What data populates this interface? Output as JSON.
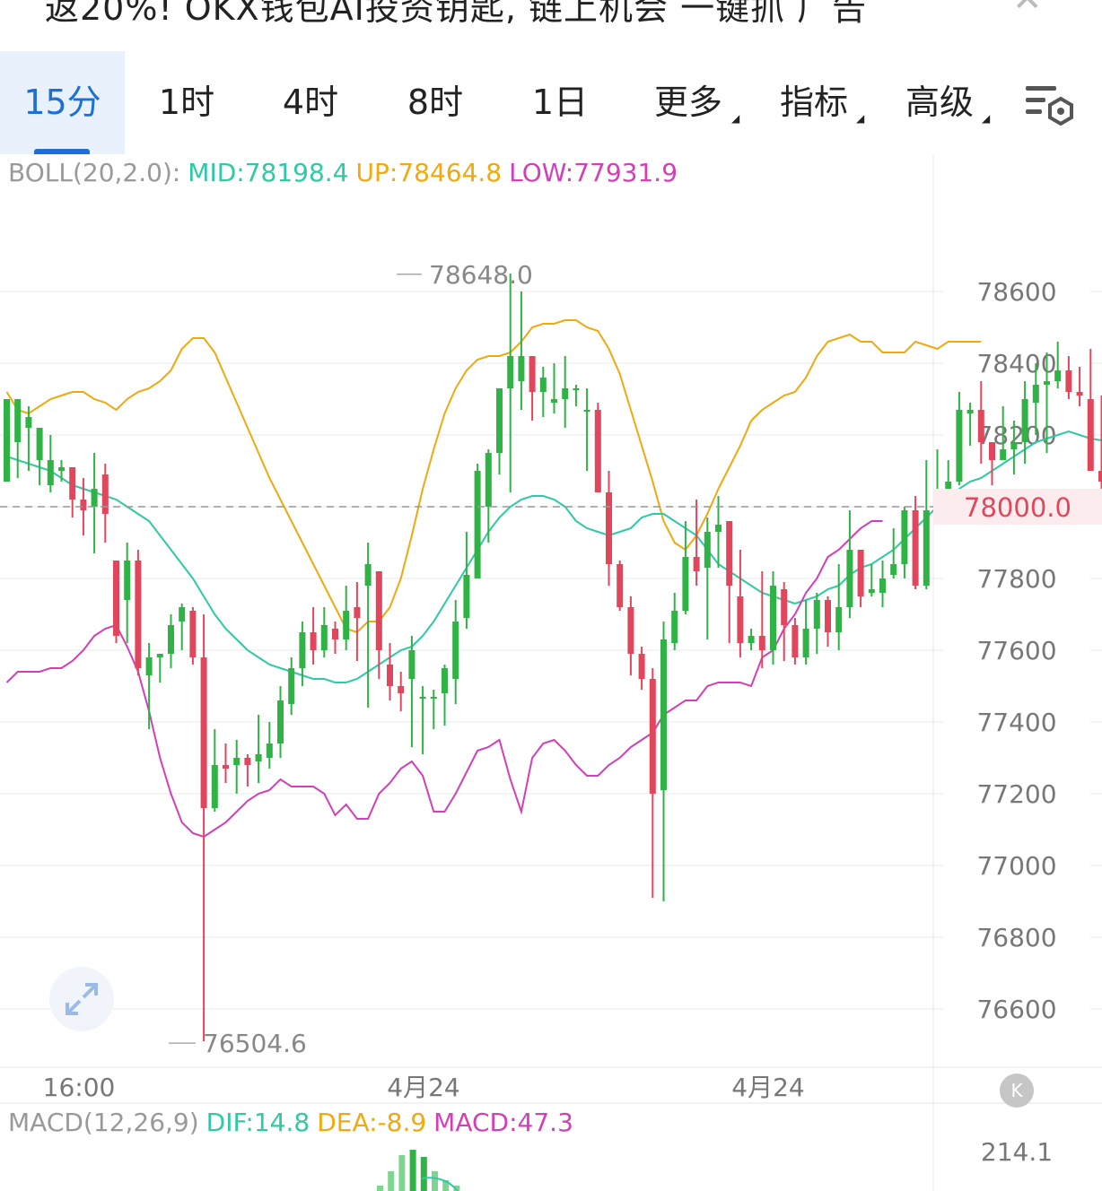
{
  "banner": {
    "text": "返20%! OKX钱包AI投资钥匙, 链上机会 一键抓 广告",
    "close_icon": "close-icon"
  },
  "tabs": [
    {
      "label": "15分",
      "active": true
    },
    {
      "label": "1时",
      "active": false
    },
    {
      "label": "4时",
      "active": false
    },
    {
      "label": "8时",
      "active": false
    },
    {
      "label": "1日",
      "active": false
    },
    {
      "label": "更多",
      "active": false,
      "dropdown": true
    },
    {
      "label": "指标",
      "active": false,
      "dropdown": true
    },
    {
      "label": "高级",
      "active": false,
      "dropdown": true
    }
  ],
  "settings_icon": "chart-settings-icon",
  "boll": {
    "name": "BOLL(20,2.0):",
    "mid": "MID:78198.4",
    "up": "UP:78464.8",
    "low": "LOW:77931.9"
  },
  "macd": {
    "name": "MACD(12,26,9)",
    "dif": "DIF:14.8",
    "dea": "DEA:-8.9",
    "value": "MACD:47.3",
    "axis_label": "214.1"
  },
  "colors": {
    "up": "#2fb344",
    "down": "#e0475c",
    "mid": "#2fc9a6",
    "upper": "#f0a90e",
    "lower": "#d23fb8",
    "accent": "#1d6fd8"
  },
  "chart_data": {
    "type": "candlestick",
    "title": "",
    "indicator": "BOLL(20,2.0)",
    "y_ticks": [
      78600,
      78400,
      78200,
      78000,
      77800,
      77600,
      77400,
      77200,
      77000,
      76800,
      76600
    ],
    "ylim": [
      76504.6,
      78648.0
    ],
    "current_price": 78000.0,
    "current_price_label": "78000.0",
    "high_label": "78648.0",
    "low_label": "76504.6",
    "x_tick_labels": [
      "16:00",
      "4月24",
      "4月24"
    ],
    "candles": [
      [
        78070,
        78300,
        78260,
        78180
      ],
      [
        78180,
        78300,
        78220,
        78080
      ],
      [
        78220,
        78250,
        78280,
        78100
      ],
      [
        78130,
        78220,
        78190,
        78060
      ],
      [
        78060,
        78130,
        78200,
        78040
      ],
      [
        78100,
        78110,
        78130,
        78070
      ],
      [
        78110,
        78020,
        78110,
        77970
      ],
      [
        78020,
        77990,
        78080,
        77920
      ],
      [
        78000,
        78050,
        78150,
        77870
      ],
      [
        78090,
        77980,
        78120,
        77900
      ],
      [
        77850,
        77640,
        77850,
        77620
      ],
      [
        77740,
        77850,
        77900,
        77620
      ],
      [
        77850,
        77550,
        77880,
        77530
      ],
      [
        77530,
        77580,
        77620,
        77380
      ],
      [
        77580,
        77590,
        77580,
        77510
      ],
      [
        77590,
        77670,
        77700,
        77550
      ],
      [
        77680,
        77720,
        77730,
        77600
      ],
      [
        77710,
        77580,
        77720,
        77560
      ],
      [
        77580,
        77160,
        77700,
        76510
      ],
      [
        77160,
        77280,
        77380,
        77150
      ],
      [
        77280,
        77270,
        77340,
        77230
      ],
      [
        77280,
        77300,
        77350,
        77200
      ],
      [
        77300,
        77280,
        77310,
        77220
      ],
      [
        77290,
        77310,
        77420,
        77230
      ],
      [
        77300,
        77340,
        77400,
        77270
      ],
      [
        77340,
        77460,
        77500,
        77300
      ],
      [
        77450,
        77550,
        77580,
        77420
      ],
      [
        77550,
        77650,
        77680,
        77500
      ],
      [
        77650,
        77600,
        77720,
        77560
      ],
      [
        77600,
        77670,
        77720,
        77580
      ],
      [
        77660,
        77630,
        77680,
        77590
      ],
      [
        77630,
        77710,
        77780,
        77600
      ],
      [
        77720,
        77690,
        77790,
        77570
      ],
      [
        77780,
        77840,
        77900,
        77440
      ],
      [
        77820,
        77600,
        77820,
        77520
      ],
      [
        77560,
        77500,
        77620,
        77460
      ],
      [
        77500,
        77480,
        77540,
        77430
      ],
      [
        77520,
        77600,
        77640,
        77330
      ],
      [
        77470,
        77470,
        77500,
        77310
      ],
      [
        77470,
        77470,
        77490,
        77380
      ],
      [
        77480,
        77550,
        77560,
        77390
      ],
      [
        77520,
        77680,
        77740,
        77450
      ],
      [
        77690,
        77810,
        77930,
        77660
      ],
      [
        77800,
        78100,
        78120,
        77800
      ],
      [
        78000,
        78150,
        78160,
        77900
      ],
      [
        78150,
        78330,
        78320,
        78090
      ],
      [
        78330,
        78420,
        78650,
        78040
      ],
      [
        78350,
        78420,
        78600,
        78270
      ],
      [
        78420,
        78320,
        78420,
        78240
      ],
      [
        78320,
        78360,
        78390,
        78250
      ],
      [
        78290,
        78300,
        78400,
        78260
      ],
      [
        78300,
        78330,
        78420,
        78220
      ],
      [
        78330,
        78330,
        78340,
        78280
      ],
      [
        78270,
        78270,
        78330,
        78100
      ],
      [
        78270,
        78040,
        78290,
        78040
      ],
      [
        78040,
        77840,
        78100,
        77780
      ],
      [
        77840,
        77720,
        77850,
        77710
      ],
      [
        77720,
        77590,
        77750,
        77530
      ],
      [
        77590,
        77520,
        77610,
        77490
      ],
      [
        77520,
        77200,
        77550,
        76910
      ],
      [
        77210,
        77630,
        77680,
        76900
      ],
      [
        77620,
        77710,
        77760,
        77600
      ],
      [
        77710,
        77860,
        77960,
        77700
      ],
      [
        77860,
        77820,
        78020,
        77780
      ],
      [
        77830,
        77930,
        77970,
        77630
      ],
      [
        77930,
        77950,
        78030,
        77830
      ],
      [
        77960,
        77780,
        77950,
        77620
      ],
      [
        77750,
        77620,
        77880,
        77580
      ],
      [
        77620,
        77640,
        77660,
        77600
      ],
      [
        77640,
        77600,
        77820,
        77550
      ],
      [
        77600,
        77780,
        77820,
        77560
      ],
      [
        77770,
        77670,
        77790,
        77570
      ],
      [
        77670,
        77580,
        77690,
        77560
      ],
      [
        77580,
        77660,
        77740,
        77560
      ],
      [
        77660,
        77740,
        77760,
        77590
      ],
      [
        77740,
        77650,
        77750,
        77610
      ],
      [
        77650,
        77720,
        77840,
        77600
      ],
      [
        77720,
        77880,
        77990,
        77690
      ],
      [
        77880,
        77750,
        77860,
        77720
      ],
      [
        77760,
        77770,
        77840,
        77750
      ],
      [
        77760,
        77800,
        77850,
        77720
      ],
      [
        77810,
        77840,
        77940,
        77800
      ],
      [
        77840,
        77990,
        78000,
        77800
      ],
      [
        77990,
        77780,
        78030,
        77770
      ],
      [
        77780,
        77990,
        78130,
        77770
      ],
      [
        77990,
        78040,
        78160,
        77970
      ],
      [
        78040,
        78070,
        78130,
        78000
      ],
      [
        78070,
        78270,
        78320,
        78060
      ],
      [
        78260,
        78270,
        78290,
        78170
      ],
      [
        78270,
        78180,
        78350,
        78120
      ],
      [
        78180,
        78130,
        78180,
        78060
      ],
      [
        78130,
        78160,
        78280,
        78140
      ],
      [
        78160,
        78180,
        78240,
        78090
      ],
      [
        78180,
        78300,
        78350,
        78120
      ],
      [
        78290,
        78340,
        78400,
        78200
      ],
      [
        78340,
        78350,
        78430,
        78150
      ],
      [
        78350,
        78380,
        78460,
        78330
      ],
      [
        78380,
        78320,
        78420,
        78300
      ],
      [
        78320,
        78310,
        78390,
        78280
      ],
      [
        78300,
        78100,
        78440,
        78100
      ],
      [
        78100,
        78070,
        78310,
        78020
      ],
      [
        78070,
        78020,
        78070,
        77980
      ],
      [
        78020,
        78040,
        78060,
        77880
      ],
      [
        78040,
        78390,
        78390,
        78020
      ],
      [
        78390,
        78100,
        78470,
        78050
      ],
      [
        78100,
        78330,
        78420,
        78100
      ],
      [
        78330,
        78250,
        78350,
        78090
      ],
      [
        78230,
        78340,
        78360,
        78170
      ],
      [
        78340,
        78070,
        78370,
        78110
      ],
      [
        78070,
        78060,
        78100,
        78000
      ],
      [
        78060,
        78020,
        78120,
        78020
      ],
      [
        78090,
        78000,
        78090,
        78000
      ]
    ],
    "boll_mid": [
      78140,
      78130,
      78120,
      78110,
      78100,
      78080,
      78060,
      78050,
      78040,
      78030,
      78020,
      78000,
      77980,
      77960,
      77920,
      77880,
      77840,
      77800,
      77750,
      77700,
      77660,
      77630,
      77600,
      77580,
      77560,
      77550,
      77540,
      77530,
      77520,
      77520,
      77510,
      77510,
      77520,
      77540,
      77560,
      77580,
      77600,
      77610,
      77640,
      77680,
      77730,
      77780,
      77830,
      77880,
      77930,
      77970,
      78000,
      78020,
      78030,
      78030,
      78020,
      78000,
      77960,
      77940,
      77930,
      77920,
      77930,
      77940,
      77970,
      77980,
      77980,
      77960,
      77940,
      77920,
      77880,
      77840,
      77820,
      77800,
      77780,
      77760,
      77750,
      77740,
      77730,
      77740,
      77750,
      77770,
      77780,
      77810,
      77830,
      77840,
      77860,
      77880,
      77910,
      77940,
      77970,
      78000,
      78020,
      78050,
      78070,
      78080,
      78100,
      78120,
      78140,
      78160,
      78180,
      78190,
      78200,
      78210,
      78200,
      78190,
      78185
    ],
    "boll_up": [
      78320,
      78270,
      78260,
      78280,
      78300,
      78310,
      78320,
      78320,
      78300,
      78290,
      78270,
      78300,
      78320,
      78330,
      78350,
      78380,
      78440,
      78470,
      78470,
      78430,
      78360,
      78290,
      78220,
      78150,
      78080,
      78020,
      77960,
      77900,
      77840,
      77780,
      77720,
      77660,
      77650,
      77680,
      77680,
      77720,
      77800,
      77920,
      78050,
      78160,
      78260,
      78330,
      78380,
      78410,
      78420,
      78420,
      78430,
      78460,
      78500,
      78510,
      78510,
      78520,
      78520,
      78500,
      78490,
      78440,
      78370,
      78270,
      78170,
      78070,
      77960,
      77900,
      77880,
      77920,
      77980,
      78050,
      78110,
      78170,
      78240,
      78270,
      78290,
      78310,
      78320,
      78360,
      78420,
      78460,
      78470,
      78480,
      78460,
      78460,
      78430,
      78430,
      78430,
      78460,
      78450,
      78440,
      78460,
      78460,
      78460,
      78460
    ],
    "boll_low": [
      77510,
      77540,
      77540,
      77540,
      77550,
      77550,
      77570,
      77600,
      77640,
      77660,
      77670,
      77610,
      77540,
      77430,
      77300,
      77200,
      77120,
      77090,
      77080,
      77100,
      77120,
      77150,
      77180,
      77200,
      77210,
      77240,
      77220,
      77220,
      77220,
      77200,
      77140,
      77170,
      77130,
      77130,
      77200,
      77230,
      77270,
      77290,
      77250,
      77150,
      77150,
      77200,
      77260,
      77320,
      77330,
      77350,
      77240,
      77150,
      77300,
      77340,
      77350,
      77320,
      77280,
      77250,
      77250,
      77280,
      77300,
      77330,
      77350,
      77370,
      77420,
      77440,
      77460,
      77460,
      77500,
      77510,
      77510,
      77510,
      77500,
      77580,
      77600,
      77660,
      77700,
      77760,
      77800,
      77860,
      77880,
      77910,
      77940,
      77960,
      77960
    ]
  }
}
